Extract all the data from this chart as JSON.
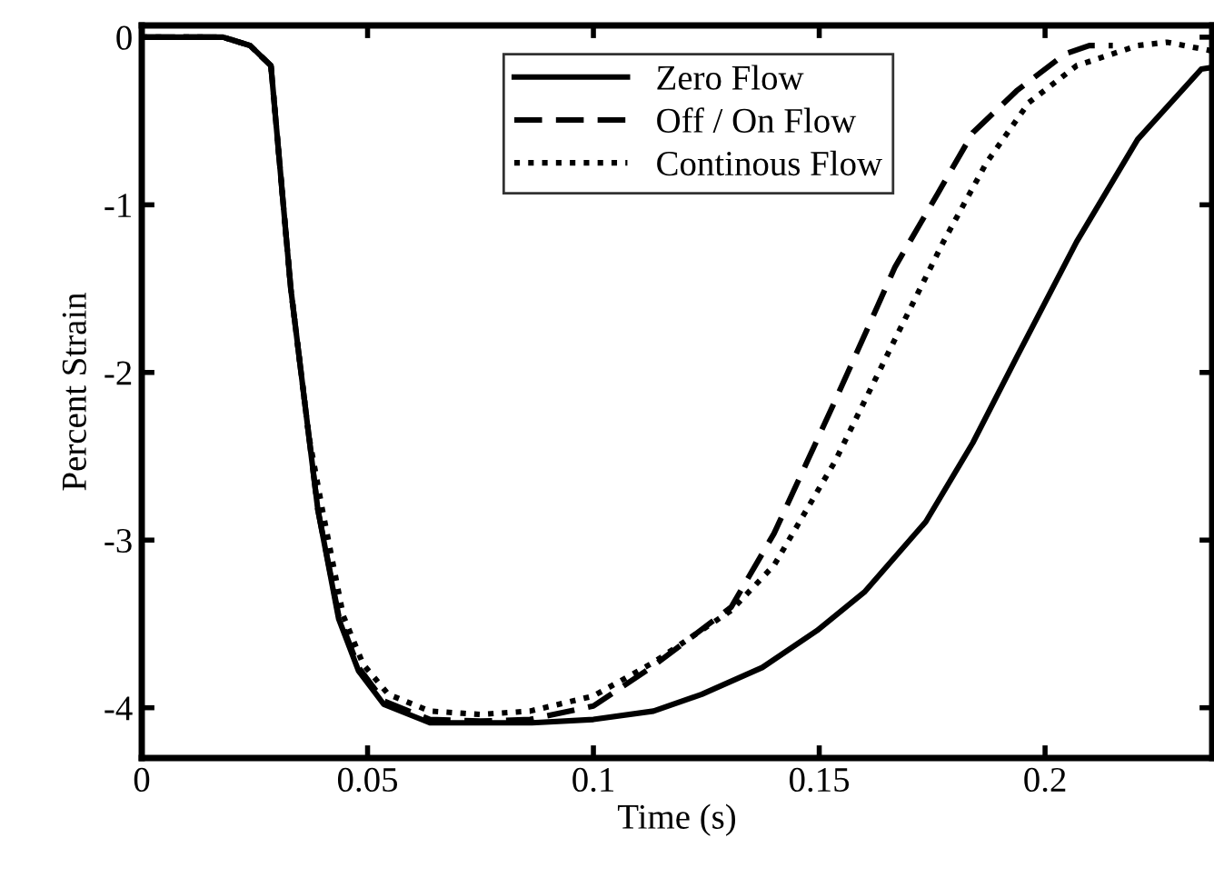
{
  "chart_data": {
    "type": "line",
    "xlabel": "Time (s)",
    "ylabel": "Percent Strain",
    "xlim": [
      0,
      0.237
    ],
    "ylim": [
      -4.3,
      0.07
    ],
    "xticks": [
      0,
      0.05,
      0.1,
      0.15,
      0.2
    ],
    "yticks": [
      0,
      -1,
      -2,
      -3,
      -4
    ],
    "grid": false,
    "legend": "top",
    "marker": "none",
    "series": [
      {
        "name": "Zero Flow",
        "color": "#000000",
        "line_style": "solid",
        "x": [
          0,
          0.018,
          0.024,
          0.0286,
          0.033,
          0.037,
          0.039,
          0.0436,
          0.048,
          0.0536,
          0.0638,
          0.0864,
          0.1,
          0.1133,
          0.124,
          0.1374,
          0.1495,
          0.16,
          0.1736,
          0.184,
          0.1937,
          0.207,
          0.2205,
          0.2346,
          0.237
        ],
        "values": [
          0,
          0,
          -0.05,
          -0.17,
          -1.5,
          -2.38,
          -2.82,
          -3.47,
          -3.78,
          -3.98,
          -4.09,
          -4.09,
          -4.07,
          -4.02,
          -3.92,
          -3.76,
          -3.54,
          -3.31,
          -2.89,
          -2.42,
          -1.91,
          -1.22,
          -0.61,
          -0.19,
          -0.18
        ]
      },
      {
        "name": "Off / On Flow",
        "color": "#000000",
        "line_style": "dashed",
        "x": [
          0,
          0.018,
          0.024,
          0.0286,
          0.033,
          0.037,
          0.039,
          0.0436,
          0.048,
          0.0536,
          0.0638,
          0.075,
          0.086,
          0.1,
          0.1133,
          0.1305,
          0.14,
          0.1535,
          0.1668,
          0.1763,
          0.184,
          0.1937,
          0.2044,
          0.2098,
          0.215
        ],
        "values": [
          0,
          0,
          -0.05,
          -0.17,
          -1.5,
          -2.38,
          -2.82,
          -3.45,
          -3.76,
          -3.96,
          -4.07,
          -4.08,
          -4.07,
          -3.99,
          -3.75,
          -3.4,
          -2.96,
          -2.17,
          -1.37,
          -0.93,
          -0.57,
          -0.32,
          -0.1,
          -0.05,
          -0.05
        ]
      },
      {
        "name": "Continous Flow",
        "color": "#000000",
        "line_style": "dotted",
        "x": [
          0,
          0.018,
          0.024,
          0.0286,
          0.033,
          0.037,
          0.04,
          0.0446,
          0.049,
          0.0546,
          0.0638,
          0.075,
          0.086,
          0.1,
          0.1133,
          0.1305,
          0.14,
          0.1535,
          0.1668,
          0.1775,
          0.187,
          0.1964,
          0.207,
          0.2205,
          0.227,
          0.2366
        ],
        "values": [
          0,
          0,
          -0.05,
          -0.17,
          -1.5,
          -2.38,
          -2.82,
          -3.45,
          -3.74,
          -3.92,
          -4.02,
          -4.04,
          -4.02,
          -3.93,
          -3.73,
          -3.42,
          -3.15,
          -2.53,
          -1.8,
          -1.22,
          -0.75,
          -0.39,
          -0.17,
          -0.05,
          -0.03,
          -0.08
        ]
      }
    ]
  }
}
